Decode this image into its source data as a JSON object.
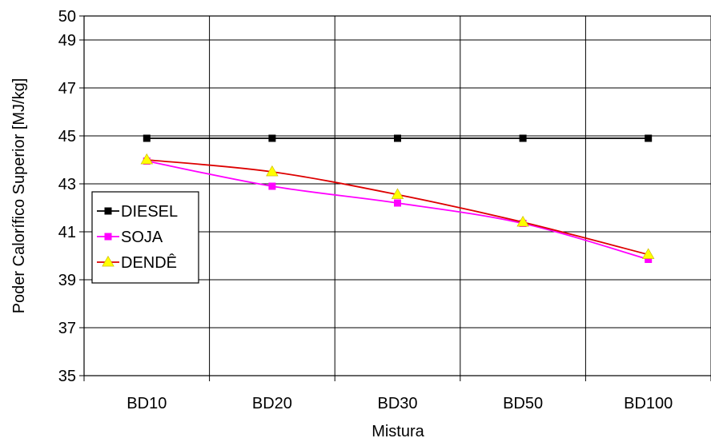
{
  "chart_data": {
    "type": "line",
    "categories": [
      "BD10",
      "BD20",
      "BD30",
      "BD50",
      "BD100"
    ],
    "xlabel": "Mistura",
    "ylabel": "Poder Calorífico Superior  [MJ/kg]",
    "ylim": [
      35,
      50
    ],
    "yticks": [
      35,
      37,
      39,
      41,
      43,
      45,
      47,
      49,
      50
    ],
    "grid": true,
    "legend_position": "left-middle",
    "series": [
      {
        "name": "DIESEL",
        "color": "#000000",
        "marker_color": "#000000",
        "marker": "square",
        "values": [
          44.9,
          44.9,
          44.9,
          44.9,
          44.9
        ]
      },
      {
        "name": "SOJA",
        "color": "#ff00ff",
        "marker_color": "#ff00ff",
        "marker": "square",
        "values": [
          43.95,
          42.9,
          42.2,
          41.35,
          39.85
        ]
      },
      {
        "name": "DENDÊ",
        "color": "#dd0000",
        "marker_color": "#ffff00",
        "marker": "triangle",
        "values": [
          44.0,
          43.5,
          42.55,
          41.4,
          40.05
        ]
      }
    ]
  }
}
